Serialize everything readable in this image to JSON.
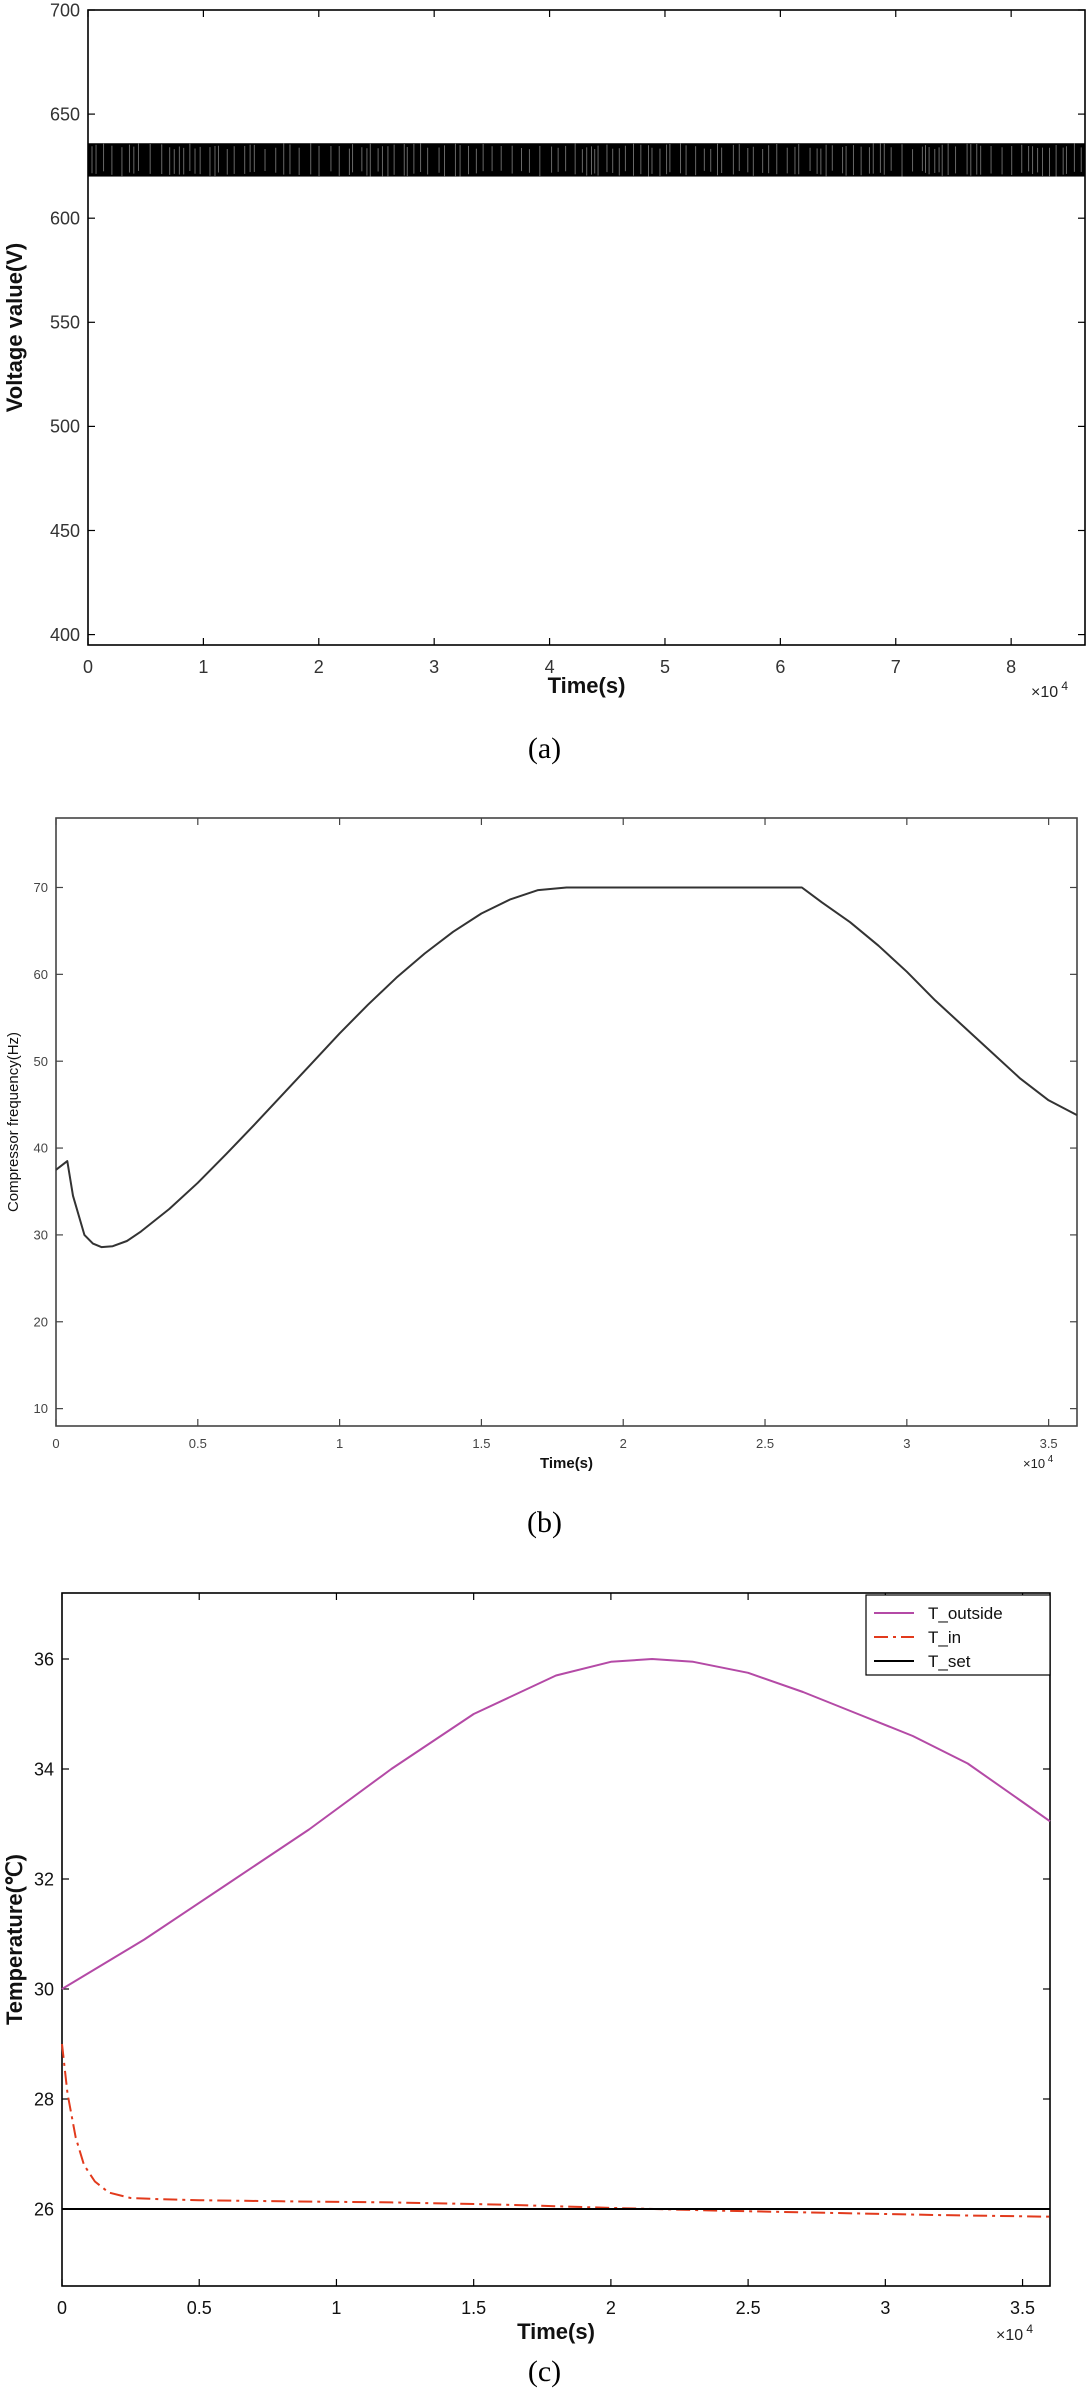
{
  "chart_data": [
    {
      "type": "line",
      "caption": "(a)",
      "xlabel": "Time(s)",
      "ylabel": "Voltage value(V)",
      "x_multiplier": "×10",
      "x_multiplier_exp": "4",
      "xlim": [
        0,
        8.64
      ],
      "ylim": [
        395,
        700
      ],
      "xticks": [
        0,
        1,
        2,
        3,
        4,
        5,
        6,
        7,
        8
      ],
      "yticks": [
        400,
        450,
        500,
        550,
        600,
        650,
        700
      ],
      "grid": false,
      "series": [
        {
          "band": true,
          "x_range": [
            0,
            8.64
          ],
          "y_low": 620,
          "y_high": 636,
          "color": "#000000"
        }
      ]
    },
    {
      "type": "line",
      "caption": "(b)",
      "xlabel": "Time(s)",
      "ylabel": "Compressor frequency(Hz)",
      "x_multiplier": "×10",
      "x_multiplier_exp": "4",
      "xlim": [
        0,
        3.6
      ],
      "ylim": [
        8,
        78
      ],
      "xticks": [
        0,
        0.5,
        1,
        1.5,
        2,
        2.5,
        3,
        3.5
      ],
      "yticks": [
        10,
        20,
        30,
        40,
        50,
        60,
        70
      ],
      "grid": false,
      "series": [
        {
          "color": "#333333",
          "x": [
            0,
            0.04,
            0.06,
            0.1,
            0.13,
            0.16,
            0.2,
            0.25,
            0.3,
            0.4,
            0.5,
            0.6,
            0.7,
            0.8,
            0.9,
            1.0,
            1.1,
            1.2,
            1.3,
            1.4,
            1.5,
            1.6,
            1.7,
            1.8,
            2.0,
            2.2,
            2.4,
            2.63,
            2.7,
            2.8,
            2.9,
            3.0,
            3.1,
            3.2,
            3.3,
            3.4,
            3.5,
            3.6
          ],
          "y": [
            37.5,
            38.5,
            34.5,
            30.0,
            29.0,
            28.6,
            28.7,
            29.3,
            30.4,
            33.0,
            36.0,
            39.3,
            42.7,
            46.2,
            49.7,
            53.2,
            56.5,
            59.6,
            62.4,
            64.9,
            67.0,
            68.6,
            69.7,
            70.0,
            70.0,
            70.0,
            70.0,
            70.0,
            68.3,
            66.0,
            63.3,
            60.3,
            57.0,
            54.0,
            51.0,
            48.0,
            45.5,
            43.8
          ]
        }
      ]
    },
    {
      "type": "line",
      "caption": "(c)",
      "xlabel": "Time(s)",
      "ylabel": "Temperature(℃)",
      "x_multiplier": "×10",
      "x_multiplier_exp": "4",
      "xlim": [
        0,
        3.6
      ],
      "ylim": [
        24.6,
        37.2
      ],
      "xticks": [
        0,
        0.5,
        1,
        1.5,
        2,
        2.5,
        3,
        3.5
      ],
      "yticks": [
        26,
        28,
        30,
        32,
        34,
        36
      ],
      "grid": false,
      "legend": "top-right",
      "series": [
        {
          "name": "T_outside",
          "color": "#b44aa6",
          "dash": "solid",
          "x": [
            0,
            0.3,
            0.6,
            0.9,
            1.2,
            1.5,
            1.8,
            2.0,
            2.15,
            2.3,
            2.5,
            2.7,
            2.9,
            3.1,
            3.3,
            3.5,
            3.6
          ],
          "y": [
            30.0,
            30.9,
            31.9,
            32.9,
            34.0,
            35.0,
            35.7,
            35.95,
            36.0,
            35.95,
            35.75,
            35.4,
            35.0,
            34.6,
            34.1,
            33.4,
            33.05
          ]
        },
        {
          "name": "T_in",
          "color": "#e23a1c",
          "dash": "dashdot",
          "x": [
            0,
            0.02,
            0.05,
            0.08,
            0.12,
            0.17,
            0.25,
            0.35,
            0.5,
            0.8,
            1.2,
            1.6,
            2.0,
            2.4,
            2.8,
            3.2,
            3.6
          ],
          "y": [
            29.0,
            28.1,
            27.3,
            26.8,
            26.5,
            26.3,
            26.2,
            26.18,
            26.16,
            26.14,
            26.12,
            26.08,
            26.02,
            25.97,
            25.93,
            25.89,
            25.86
          ]
        },
        {
          "name": "T_set",
          "color": "#000000",
          "dash": "solid",
          "x": [
            0,
            3.6
          ],
          "y": [
            26.0,
            26.0
          ]
        }
      ]
    }
  ]
}
